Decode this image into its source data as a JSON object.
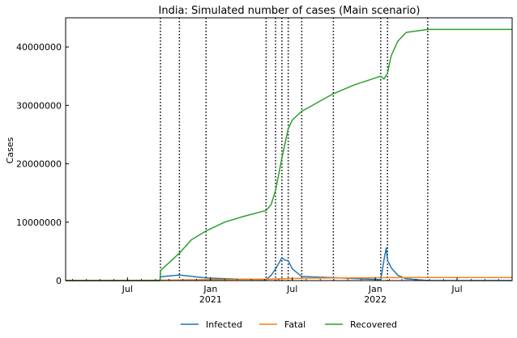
{
  "chart_data": {
    "type": "line",
    "title": "India: Simulated number of cases (Main scenario)",
    "xlabel": "",
    "ylabel": "Cases",
    "xlim": [
      "2020-02-15",
      "2022-10-31"
    ],
    "ylim": [
      0,
      45000000
    ],
    "grid": false,
    "legend_position": "bottom-center",
    "y_ticks": [
      {
        "value": 0,
        "label": "0"
      },
      {
        "value": 10000000,
        "label": "10000000"
      },
      {
        "value": 20000000,
        "label": "20000000"
      },
      {
        "value": 30000000,
        "label": "30000000"
      },
      {
        "value": 40000000,
        "label": "40000000"
      }
    ],
    "x_ticks": [
      {
        "date": "2020-07-01",
        "label": "Jul",
        "sublabel": ""
      },
      {
        "date": "2021-01-01",
        "label": "Jan",
        "sublabel": "2021"
      },
      {
        "date": "2021-07-01",
        "label": "Jul",
        "sublabel": ""
      },
      {
        "date": "2022-01-01",
        "label": "Jan",
        "sublabel": "2022"
      },
      {
        "date": "2022-07-01",
        "label": "Jul",
        "sublabel": ""
      }
    ],
    "change_dates": [
      "2020-09-12",
      "2020-10-24",
      "2020-12-22",
      "2021-05-04",
      "2021-05-25",
      "2021-06-08",
      "2021-06-22",
      "2021-07-22",
      "2021-09-30",
      "2022-01-13",
      "2022-01-28",
      "2022-04-27"
    ],
    "series": [
      {
        "name": "Infected",
        "color": "#1f77b4",
        "points": [
          [
            "2020-02-15",
            0
          ],
          [
            "2020-09-11",
            0
          ],
          [
            "2020-09-12",
            650000
          ],
          [
            "2020-10-24",
            950000
          ],
          [
            "2020-12-22",
            450000
          ],
          [
            "2021-03-01",
            250000
          ],
          [
            "2021-05-04",
            200000
          ],
          [
            "2021-05-15",
            900000
          ],
          [
            "2021-05-25",
            2000000
          ],
          [
            "2021-06-08",
            3900000
          ],
          [
            "2021-06-15",
            3500000
          ],
          [
            "2021-06-22",
            3400000
          ],
          [
            "2021-07-01",
            2000000
          ],
          [
            "2021-07-22",
            700000
          ],
          [
            "2021-09-30",
            500000
          ],
          [
            "2022-01-13",
            150000
          ],
          [
            "2022-01-20",
            3500000
          ],
          [
            "2022-01-25",
            5600000
          ],
          [
            "2022-01-28",
            3500000
          ],
          [
            "2022-02-05",
            2200000
          ],
          [
            "2022-02-20",
            900000
          ],
          [
            "2022-03-10",
            300000
          ],
          [
            "2022-04-27",
            20000
          ],
          [
            "2022-10-31",
            0
          ]
        ]
      },
      {
        "name": "Fatal",
        "color": "#ff7f0e",
        "points": [
          [
            "2020-02-15",
            0
          ],
          [
            "2020-09-12",
            50000
          ],
          [
            "2020-12-22",
            150000
          ],
          [
            "2021-05-04",
            250000
          ],
          [
            "2021-07-22",
            400000
          ],
          [
            "2021-09-30",
            440000
          ],
          [
            "2022-01-13",
            480000
          ],
          [
            "2022-01-28",
            500000
          ],
          [
            "2022-04-27",
            520000
          ],
          [
            "2022-10-31",
            530000
          ]
        ]
      },
      {
        "name": "Recovered",
        "color": "#2ca02c",
        "points": [
          [
            "2020-02-15",
            0
          ],
          [
            "2020-09-11",
            0
          ],
          [
            "2020-09-12",
            1700000
          ],
          [
            "2020-10-24",
            4700000
          ],
          [
            "2020-11-20",
            7000000
          ],
          [
            "2020-12-22",
            8500000
          ],
          [
            "2021-02-01",
            10000000
          ],
          [
            "2021-03-15",
            11000000
          ],
          [
            "2021-05-04",
            12000000
          ],
          [
            "2021-05-15",
            13000000
          ],
          [
            "2021-05-25",
            15500000
          ],
          [
            "2021-06-08",
            21000000
          ],
          [
            "2021-06-22",
            26000000
          ],
          [
            "2021-07-01",
            27500000
          ],
          [
            "2021-07-22",
            29000000
          ],
          [
            "2021-09-30",
            32000000
          ],
          [
            "2021-11-15",
            33500000
          ],
          [
            "2022-01-13",
            35000000
          ],
          [
            "2022-01-20",
            34500000
          ],
          [
            "2022-01-28",
            35500000
          ],
          [
            "2022-02-05",
            38500000
          ],
          [
            "2022-02-20",
            41000000
          ],
          [
            "2022-03-10",
            42500000
          ],
          [
            "2022-04-27",
            43000000
          ],
          [
            "2022-10-31",
            43000000
          ]
        ]
      }
    ]
  }
}
